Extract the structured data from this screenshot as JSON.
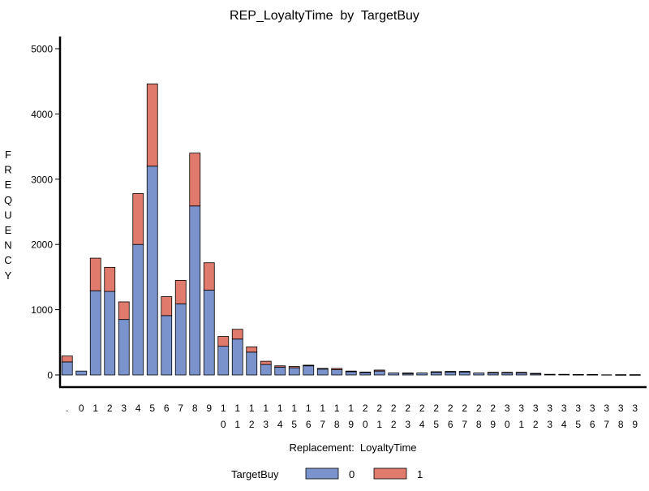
{
  "chart_data": {
    "type": "bar",
    "stacked": true,
    "title": "REP_LoyaltyTime  by  TargetBuy",
    "xlabel": "Replacement:  LoyaltyTime",
    "ylabel": "FREQUENCY",
    "ylim": [
      0,
      5000
    ],
    "yticks": [
      "0",
      "1000",
      "2000",
      "3000",
      "4000",
      "5000"
    ],
    "grid": false,
    "legend_position": "bottom",
    "legend_title": "TargetBuy",
    "categories": [
      ".",
      "0",
      "1",
      "2",
      "3",
      "4",
      "5",
      "6",
      "7",
      "8",
      "9",
      "10",
      "11",
      "12",
      "13",
      "14",
      "15",
      "16",
      "17",
      "18",
      "19",
      "20",
      "21",
      "22",
      "23",
      "24",
      "25",
      "26",
      "27",
      "28",
      "29",
      "30",
      "31",
      "32",
      "33",
      "34",
      "35",
      "36",
      "37",
      "38",
      "39"
    ],
    "series": [
      {
        "name": "0",
        "color": "#7b93cc",
        "values": [
          200,
          60,
          1290,
          1280,
          850,
          2000,
          3200,
          910,
          1090,
          2590,
          1300,
          440,
          550,
          350,
          160,
          120,
          110,
          140,
          90,
          80,
          50,
          40,
          60,
          30,
          25,
          30,
          40,
          45,
          45,
          30,
          35,
          30,
          30,
          20,
          10,
          10,
          8,
          8,
          0,
          5,
          5
        ]
      },
      {
        "name": "1",
        "color": "#df7a6d",
        "values": [
          90,
          0,
          500,
          370,
          270,
          780,
          1260,
          290,
          360,
          810,
          420,
          150,
          150,
          80,
          50,
          20,
          20,
          10,
          10,
          20,
          10,
          5,
          15,
          0,
          5,
          0,
          10,
          10,
          10,
          0,
          5,
          10,
          10,
          5,
          0,
          0,
          0,
          0,
          0,
          0,
          0
        ]
      }
    ]
  }
}
